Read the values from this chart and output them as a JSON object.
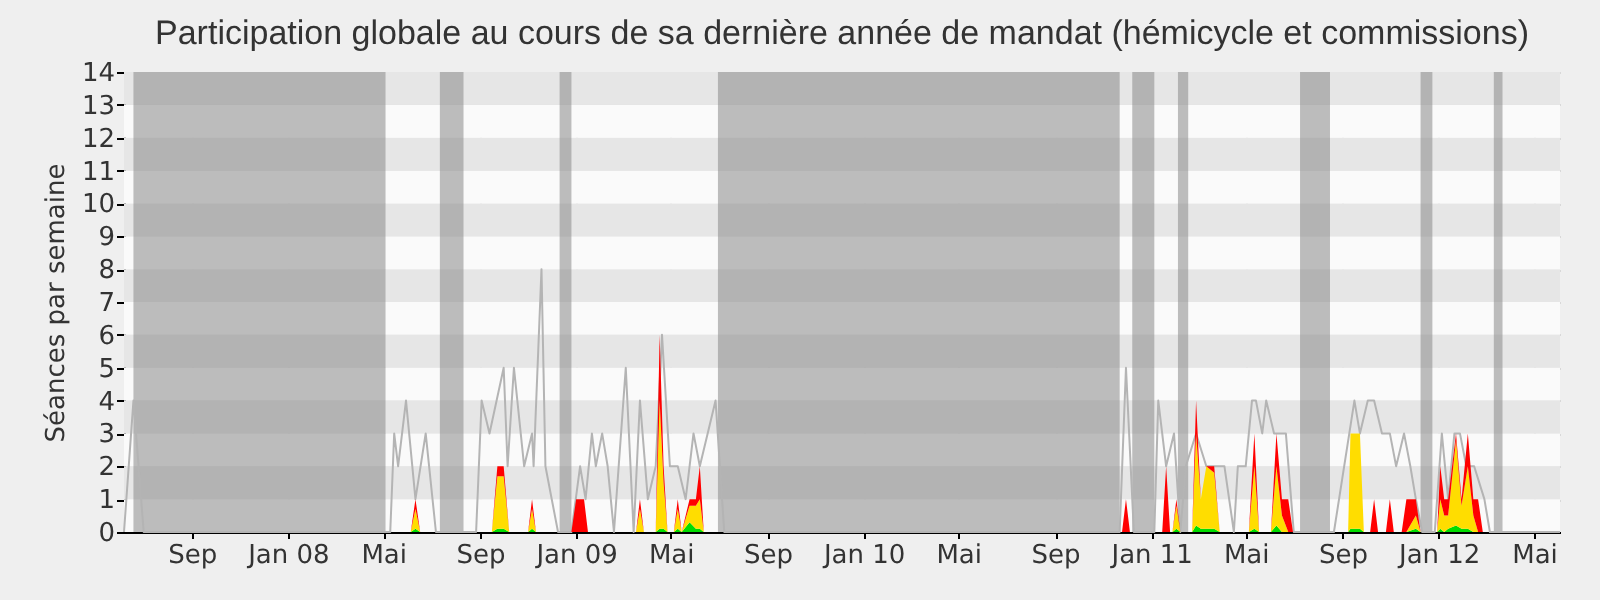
{
  "chart_data": {
    "type": "area",
    "title": "Participation globale au cours de sa dernière année de mandat (hémicycle et commissions)",
    "ylabel": "Séances par semaine",
    "stacked": true,
    "grid": true,
    "xlim": [
      "2007-06-07",
      "2012-06-03"
    ],
    "xticks": [
      {
        "value": "2007-09-01",
        "label": "Sep"
      },
      {
        "value": "2008-01-01",
        "label": "Jan 08"
      },
      {
        "value": "2008-05-01",
        "label": "Mai"
      },
      {
        "value": "2008-09-01",
        "label": "Sep"
      },
      {
        "value": "2009-01-01",
        "label": "Jan 09"
      },
      {
        "value": "2009-05-01",
        "label": "Mai"
      },
      {
        "value": "2009-09-01",
        "label": "Sep"
      },
      {
        "value": "2010-01-01",
        "label": "Jan 10"
      },
      {
        "value": "2010-05-01",
        "label": "Mai"
      },
      {
        "value": "2010-09-01",
        "label": "Sep"
      },
      {
        "value": "2011-01-01",
        "label": "Jan 11"
      },
      {
        "value": "2011-05-01",
        "label": "Mai"
      },
      {
        "value": "2011-09-01",
        "label": "Sep"
      },
      {
        "value": "2012-01-01",
        "label": "Jan 12"
      },
      {
        "value": "2012-05-01",
        "label": "Mai"
      }
    ],
    "ylim": [
      0,
      14
    ],
    "yticks": [
      0,
      1,
      2,
      3,
      4,
      5,
      6,
      7,
      8,
      9,
      10,
      11,
      12,
      13,
      14
    ],
    "x": [
      "2007-06-07",
      "2008-06-05",
      "2008-06-11",
      "2008-06-17",
      "2008-09-16",
      "2008-09-23",
      "2008-10-01",
      "2008-10-08",
      "2008-11-01",
      "2008-11-06",
      "2008-11-11",
      "2008-12-26",
      "2009-01-01",
      "2009-01-11",
      "2009-01-16",
      "2009-03-18",
      "2009-03-23",
      "2009-03-28",
      "2009-04-12",
      "2009-04-17",
      "2009-04-22",
      "2009-04-27",
      "2009-05-05",
      "2009-05-10",
      "2009-05-15",
      "2009-05-25",
      "2009-06-02",
      "2009-06-07",
      "2009-06-12",
      "2010-11-25",
      "2010-11-30",
      "2010-12-05",
      "2011-01-15",
      "2011-01-20",
      "2011-01-25",
      "2011-01-28",
      "2011-02-02",
      "2011-02-07",
      "2011-02-22",
      "2011-02-27",
      "2011-03-05",
      "2011-03-12",
      "2011-03-22",
      "2011-03-29",
      "2011-05-05",
      "2011-05-12",
      "2011-05-18",
      "2011-06-02",
      "2011-06-09",
      "2011-06-16",
      "2011-06-24",
      "2011-06-30",
      "2011-09-08",
      "2011-09-11",
      "2011-09-23",
      "2011-09-28",
      "2011-10-06",
      "2011-10-11",
      "2011-10-16",
      "2011-10-26",
      "2011-10-31",
      "2011-11-05",
      "2011-11-15",
      "2011-11-21",
      "2011-12-03",
      "2011-12-09",
      "2011-12-30",
      "2012-01-03",
      "2012-01-08",
      "2012-01-13",
      "2012-01-23",
      "2012-01-30",
      "2012-02-07",
      "2012-02-14",
      "2012-02-20",
      "2012-02-26",
      "2012-06-03"
    ],
    "series": [
      {
        "color": "#00dd00",
        "values": [
          0,
          0,
          0.1,
          0,
          0,
          0.1,
          0.1,
          0,
          0,
          0.1,
          0,
          0,
          0,
          0,
          0,
          0,
          0,
          0,
          0,
          0.1,
          0.1,
          0,
          0,
          0.1,
          0,
          0.3,
          0.1,
          0.1,
          0,
          0,
          0,
          0,
          0,
          0,
          0,
          0,
          0.1,
          0,
          0,
          0.2,
          0.1,
          0.1,
          0.1,
          0,
          0,
          0.1,
          0,
          0,
          0.2,
          0,
          0,
          0,
          0,
          0.1,
          0.1,
          0,
          0,
          0,
          0,
          0,
          0,
          0,
          0,
          0,
          0.1,
          0,
          0,
          0.1,
          0,
          0.1,
          0.2,
          0.1,
          0.1,
          0,
          0,
          0,
          0
        ]
      },
      {
        "color": "#ffdd00",
        "values": [
          0,
          0,
          0.6,
          0,
          0,
          1.6,
          1.6,
          0,
          0,
          0.6,
          0,
          0,
          0,
          0,
          0,
          0,
          0.7,
          0,
          0,
          3.9,
          1.4,
          0,
          0,
          0.6,
          0,
          0.5,
          0.7,
          0.9,
          0,
          0,
          0,
          0,
          0,
          0,
          0,
          0,
          0.7,
          0,
          0,
          2.8,
          0.9,
          1.9,
          1.7,
          0,
          0,
          1.9,
          0,
          0,
          1.8,
          0.5,
          0,
          0,
          0,
          2.9,
          2.9,
          0,
          0,
          0,
          0,
          0,
          0,
          0,
          0,
          0,
          0.4,
          0,
          0,
          0.9,
          0.5,
          0.4,
          2.6,
          0.7,
          1.9,
          0.5,
          0,
          0,
          0
        ]
      },
      {
        "color": "#ff0000",
        "values": [
          0,
          0,
          0.3,
          0,
          0,
          0.3,
          0.3,
          0,
          0,
          0.3,
          0,
          0,
          1,
          1,
          0,
          0,
          0.3,
          0,
          0,
          2,
          0.5,
          0,
          0,
          0.3,
          0,
          0.2,
          0.2,
          1,
          0,
          0,
          1,
          0,
          0,
          2,
          0,
          0,
          0.2,
          0,
          0,
          1,
          0,
          0,
          0.2,
          0,
          0,
          1,
          0,
          0,
          1,
          0.5,
          1,
          0,
          0,
          0,
          0,
          0,
          0,
          1,
          0,
          0,
          1,
          0,
          0,
          1,
          0.5,
          0,
          0,
          1,
          0.5,
          0.5,
          0.2,
          0.2,
          1,
          0.5,
          1,
          0,
          0
        ]
      },
      {
        "type": "line",
        "color": "#b4b4b4",
        "x": [
          "2007-06-07",
          "2007-06-19",
          "2007-07-02",
          "2008-05-10",
          "2008-05-15",
          "2008-05-20",
          "2008-05-30",
          "2008-06-11",
          "2008-06-24",
          "2008-07-07",
          "2008-08-27",
          "2008-09-03",
          "2008-09-13",
          "2008-10-01",
          "2008-10-06",
          "2008-10-14",
          "2008-10-27",
          "2008-11-06",
          "2008-11-08",
          "2008-11-18",
          "2008-11-23",
          "2008-12-09",
          "2008-12-26",
          "2009-01-06",
          "2009-01-13",
          "2009-01-21",
          "2009-01-26",
          "2009-02-03",
          "2009-02-10",
          "2009-02-18",
          "2009-03-05",
          "2009-03-15",
          "2009-03-23",
          "2009-04-02",
          "2009-04-12",
          "2009-04-20",
          "2009-04-30",
          "2009-05-10",
          "2009-05-20",
          "2009-05-30",
          "2009-06-07",
          "2009-06-27",
          "2009-07-08",
          "2010-11-22",
          "2010-11-30",
          "2010-12-10",
          "2011-01-05",
          "2011-01-10",
          "2011-01-20",
          "2011-01-30",
          "2011-02-07",
          "2011-02-14",
          "2011-02-27",
          "2011-03-12",
          "2011-04-04",
          "2011-04-16",
          "2011-04-21",
          "2011-05-01",
          "2011-05-09",
          "2011-05-14",
          "2011-05-22",
          "2011-05-27",
          "2011-06-06",
          "2011-06-21",
          "2011-07-01",
          "2011-08-21",
          "2011-09-16",
          "2011-09-23",
          "2011-10-03",
          "2011-10-11",
          "2011-10-21",
          "2011-10-31",
          "2011-11-08",
          "2011-11-18",
          "2011-11-26",
          "2011-12-03",
          "2011-12-11",
          "2011-12-27",
          "2012-01-05",
          "2012-01-13",
          "2012-01-21",
          "2012-01-28",
          "2012-02-05",
          "2012-02-15",
          "2012-02-28",
          "2012-03-06",
          "2012-06-03"
        ],
        "values": [
          0,
          4,
          0,
          0,
          3,
          2,
          4,
          1,
          3,
          0,
          0,
          4,
          3,
          5,
          2,
          5,
          2,
          3,
          2,
          8,
          2,
          0,
          0,
          2,
          1,
          3,
          2,
          3,
          2,
          0,
          5,
          0,
          4,
          1,
          2,
          6,
          2,
          2,
          1,
          3,
          2,
          4,
          0,
          0,
          5,
          0,
          0,
          4,
          2,
          3,
          0,
          2,
          3,
          2,
          2,
          0,
          2,
          2,
          4,
          4,
          3,
          4,
          3,
          3,
          0,
          0,
          4,
          3,
          4,
          4,
          3,
          3,
          2,
          3,
          2,
          1,
          0,
          0,
          3,
          1,
          3,
          3,
          2,
          2,
          1,
          0,
          0
        ]
      }
    ],
    "bands": [
      {
        "axis": "x",
        "from": "2007-06-19",
        "to": "2008-05-04",
        "color": "#888888"
      },
      {
        "axis": "x",
        "from": "2008-07-12",
        "to": "2008-08-11",
        "color": "#888888"
      },
      {
        "axis": "x",
        "from": "2008-12-11",
        "to": "2008-12-26",
        "color": "#888888"
      },
      {
        "axis": "x",
        "from": "2009-06-30",
        "to": "2010-11-22",
        "color": "#888888"
      },
      {
        "axis": "x",
        "from": "2010-12-08",
        "to": "2011-01-05",
        "color": "#888888"
      },
      {
        "axis": "x",
        "from": "2011-02-04",
        "to": "2011-02-17",
        "color": "#888888"
      },
      {
        "axis": "x",
        "from": "2011-07-09",
        "to": "2011-08-16",
        "color": "#888888"
      },
      {
        "axis": "x",
        "from": "2011-12-09",
        "to": "2011-12-24",
        "color": "#888888"
      },
      {
        "axis": "x",
        "from": "2012-03-11",
        "to": "2012-03-22",
        "color": "#888888"
      }
    ]
  }
}
